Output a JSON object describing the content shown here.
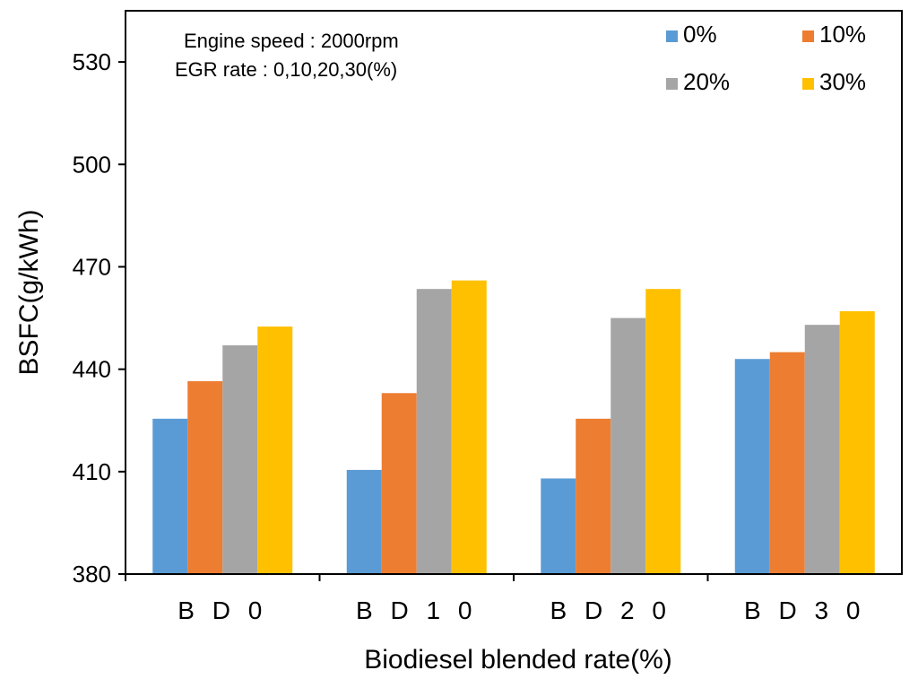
{
  "chart_data": {
    "type": "bar",
    "categories": [
      "B D 0",
      "B D 1 0",
      "B D 2 0",
      "B D 3 0"
    ],
    "series": [
      {
        "name": "0%",
        "color": "#5b9bd5",
        "values": [
          425.5,
          410.5,
          408.0,
          443.0
        ]
      },
      {
        "name": "10%",
        "color": "#ed7d31",
        "values": [
          436.5,
          433.0,
          425.5,
          445.0
        ]
      },
      {
        "name": "20%",
        "color": "#a5a5a5",
        "values": [
          447.0,
          463.5,
          455.0,
          453.0
        ]
      },
      {
        "name": "30%",
        "color": "#ffc000",
        "values": [
          452.5,
          466.0,
          463.5,
          457.0
        ]
      }
    ],
    "xlabel": "Biodiesel blended rate(%)",
    "ylabel": "BSFC(g/kWh)",
    "ylim": [
      380,
      545
    ],
    "yticks": [
      380,
      410,
      440,
      470,
      500,
      530
    ],
    "grid": false,
    "legend_position": "top-right",
    "annotations": [
      "Engine speed : 2000rpm",
      "EGR rate : 0,10,20,30(%)"
    ]
  }
}
